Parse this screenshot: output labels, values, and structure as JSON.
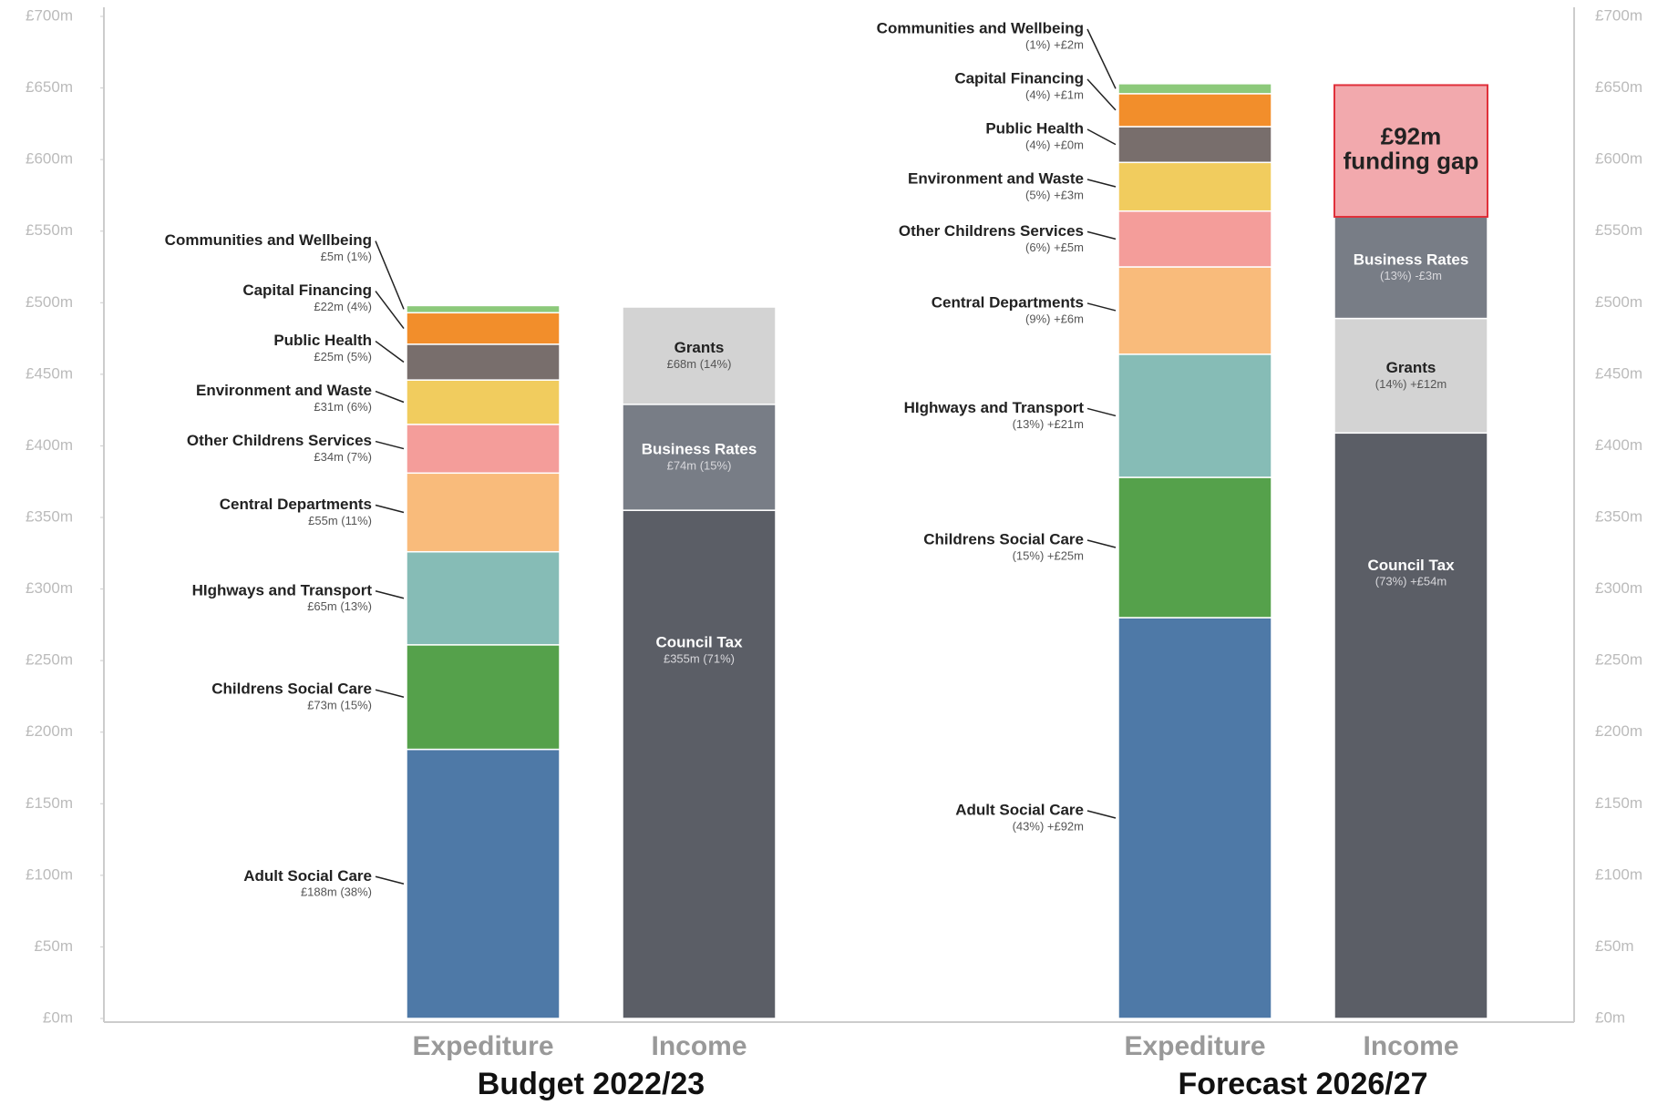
{
  "chart_data": {
    "type": "stacked_bar",
    "ylim": [
      0,
      700
    ],
    "yticks": [
      {
        "value": 0,
        "label": "£0m"
      },
      {
        "value": 50,
        "label": "£50m"
      },
      {
        "value": 100,
        "label": "£100m"
      },
      {
        "value": 150,
        "label": "£150m"
      },
      {
        "value": 200,
        "label": "£200m"
      },
      {
        "value": 250,
        "label": "£250m"
      },
      {
        "value": 300,
        "label": "£300m"
      },
      {
        "value": 350,
        "label": "£350m"
      },
      {
        "value": 400,
        "label": "£400m"
      },
      {
        "value": 450,
        "label": "£450m"
      },
      {
        "value": 500,
        "label": "£500m"
      },
      {
        "value": 550,
        "label": "£550m"
      },
      {
        "value": 600,
        "label": "£600m"
      },
      {
        "value": 650,
        "label": "£650m"
      },
      {
        "value": 700,
        "label": "£700m"
      }
    ],
    "groups": [
      {
        "title": "Budget 2022/23",
        "bars": [
          {
            "name": "Expediture",
            "segments": [
              {
                "name": "Adult Social Care",
                "color": "#4e79a7",
                "value": 188,
                "value_label": "£188m (38%)"
              },
              {
                "name": "Childrens Social Care",
                "color": "#55a14b",
                "value": 73,
                "value_label": "£73m (15%)"
              },
              {
                "name": "HIghways and Transport",
                "color": "#86bcb6",
                "value": 65,
                "value_label": "£65m (13%)"
              },
              {
                "name": "Central Departments",
                "color": "#f9bb7b",
                "value": 55,
                "value_label": "£55m (11%)"
              },
              {
                "name": "Other Childrens Services",
                "color": "#f49d9a",
                "value": 34,
                "value_label": "£34m (7%)"
              },
              {
                "name": "Environment and Waste",
                "color": "#f1cc5e",
                "value": 31,
                "value_label": "£31m (6%)"
              },
              {
                "name": "Public Health",
                "color": "#786e6c",
                "value": 25,
                "value_label": "£25m (5%)"
              },
              {
                "name": "Capital Financing",
                "color": "#f28e2b",
                "value": 22,
                "value_label": "£22m (4%)"
              },
              {
                "name": "Communities and Wellbeing",
                "color": "#8cc97a",
                "value": 5,
                "value_label": "£5m (1%)"
              }
            ]
          },
          {
            "name": "Income",
            "segments": [
              {
                "name": "Council Tax",
                "color": "#5b5e66",
                "value": 355,
                "value_label": "£355m (71%)"
              },
              {
                "name": "Business Rates",
                "color": "#787d86",
                "value": 74,
                "value_label": "£74m (15%)"
              },
              {
                "name": "Grants",
                "color": "#d3d3d3",
                "value": 68,
                "value_label": "£68m (14%)"
              }
            ]
          }
        ]
      },
      {
        "title": "Forecast 2026/27",
        "bars": [
          {
            "name": "Expediture",
            "segments": [
              {
                "name": "Adult Social Care",
                "color": "#4e79a7",
                "value": 280,
                "detail": "(43%) +£92m"
              },
              {
                "name": "Childrens Social Care",
                "color": "#55a14b",
                "value": 98,
                "detail": "(15%) +£25m"
              },
              {
                "name": "HIghways and Transport",
                "color": "#86bcb6",
                "value": 86,
                "detail": "(13%) +£21m"
              },
              {
                "name": "Central Departments",
                "color": "#f9bb7b",
                "value": 61,
                "detail": "(9%) +£6m"
              },
              {
                "name": "Other Childrens Services",
                "color": "#f49d9a",
                "value": 39,
                "detail": "(6%) +£5m"
              },
              {
                "name": "Environment and Waste",
                "color": "#f1cc5e",
                "value": 34,
                "detail": "(5%) +£3m"
              },
              {
                "name": "Public Health",
                "color": "#786e6c",
                "value": 25,
                "detail": "(4%) +£0m"
              },
              {
                "name": "Capital Financing",
                "color": "#f28e2b",
                "value": 23,
                "detail": "(4%) +£1m"
              },
              {
                "name": "Communities and Wellbeing",
                "color": "#8cc97a",
                "value": 7,
                "detail": "(1%) +£2m"
              }
            ]
          },
          {
            "name": "Income",
            "segments": [
              {
                "name": "Council Tax",
                "color": "#5b5e66",
                "value": 409,
                "detail": "(73%) +£54m"
              },
              {
                "name": "Grants",
                "color": "#d3d3d3",
                "value": 80,
                "detail": "(14%) +£12m"
              },
              {
                "name": "Business Rates",
                "color": "#787d86",
                "value": 71,
                "detail": "(13%) -£3m"
              },
              {
                "name": "funding gap",
                "color": "#f2a9ad",
                "border": "#e0303a",
                "value": 92,
                "value_label": "£92m"
              }
            ]
          }
        ]
      }
    ]
  }
}
